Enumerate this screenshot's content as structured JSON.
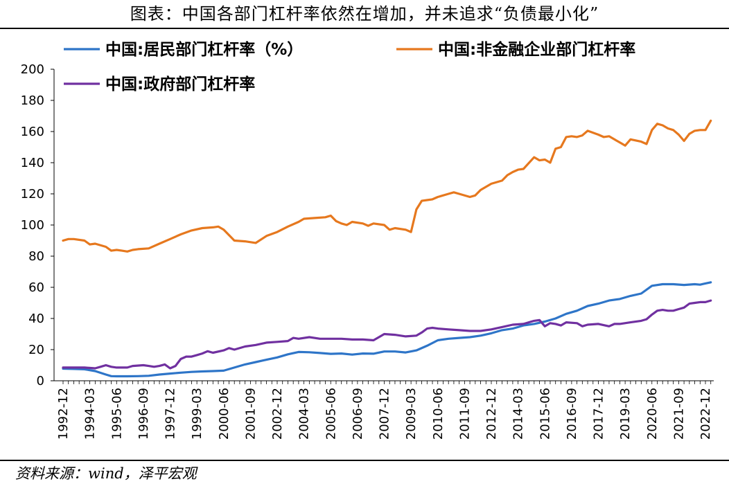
{
  "title": "图表：中国各部门杠杆率依然在增加，并未追求“负债最小化”",
  "source": "资料来源：wind，泽平宏观",
  "chart_data": {
    "type": "line",
    "ylim": [
      0,
      200
    ],
    "yticks": [
      0,
      20,
      40,
      60,
      80,
      100,
      120,
      140,
      160,
      180,
      200
    ],
    "xlabel": "",
    "ylabel": "",
    "grid": false,
    "legend_position": "top",
    "x_tick_labels": [
      "1992-12",
      "1994-03",
      "1995-06",
      "1996-09",
      "1997-12",
      "1999-03",
      "2000-06",
      "2001-09",
      "2002-12",
      "2004-03",
      "2005-06",
      "2006-09",
      "2007-12",
      "2009-03",
      "2010-06",
      "2011-09",
      "2012-12",
      "2014-03",
      "2015-06",
      "2016-09",
      "2017-12",
      "2019-03",
      "2020-06",
      "2021-09",
      "2022-12"
    ],
    "series": [
      {
        "name": "中国:居民部门杠杆率（%）",
        "color": "#2e75c8",
        "points": [
          [
            "1992-12",
            7.8
          ],
          [
            "1993-06",
            7.6
          ],
          [
            "1993-12",
            7.4
          ],
          [
            "1994-06",
            6.2
          ],
          [
            "1994-12",
            4.0
          ],
          [
            "1995-03",
            3.0
          ],
          [
            "1995-06",
            2.9
          ],
          [
            "1995-12",
            2.9
          ],
          [
            "1996-06",
            3.0
          ],
          [
            "1996-12",
            3.2
          ],
          [
            "1997-06",
            4.0
          ],
          [
            "1997-12",
            4.6
          ],
          [
            "1998-06",
            5.2
          ],
          [
            "1998-12",
            5.7
          ],
          [
            "1999-06",
            6.0
          ],
          [
            "1999-12",
            6.2
          ],
          [
            "2000-06",
            6.5
          ],
          [
            "2000-12",
            8.5
          ],
          [
            "2001-06",
            10.5
          ],
          [
            "2001-12",
            12.0
          ],
          [
            "2002-06",
            13.5
          ],
          [
            "2002-12",
            15.0
          ],
          [
            "2003-06",
            17.0
          ],
          [
            "2003-12",
            18.5
          ],
          [
            "2004-06",
            18.3
          ],
          [
            "2004-12",
            17.8
          ],
          [
            "2005-06",
            17.3
          ],
          [
            "2005-12",
            17.5
          ],
          [
            "2006-06",
            16.8
          ],
          [
            "2006-12",
            17.5
          ],
          [
            "2007-06",
            17.4
          ],
          [
            "2007-12",
            18.8
          ],
          [
            "2008-06",
            18.8
          ],
          [
            "2008-12",
            18.2
          ],
          [
            "2009-06",
            19.5
          ],
          [
            "2009-12",
            22.5
          ],
          [
            "2010-06",
            26.0
          ],
          [
            "2010-12",
            27.0
          ],
          [
            "2011-06",
            27.5
          ],
          [
            "2011-12",
            28.0
          ],
          [
            "2012-06",
            29.0
          ],
          [
            "2012-12",
            30.5
          ],
          [
            "2013-06",
            32.5
          ],
          [
            "2013-12",
            33.5
          ],
          [
            "2014-06",
            35.5
          ],
          [
            "2014-12",
            36.5
          ],
          [
            "2015-06",
            38.0
          ],
          [
            "2015-12",
            40.0
          ],
          [
            "2016-06",
            43.0
          ],
          [
            "2016-12",
            45.0
          ],
          [
            "2017-06",
            48.0
          ],
          [
            "2017-12",
            49.5
          ],
          [
            "2018-06",
            51.5
          ],
          [
            "2018-12",
            52.5
          ],
          [
            "2019-06",
            54.5
          ],
          [
            "2019-12",
            56.0
          ],
          [
            "2020-06",
            61.0
          ],
          [
            "2020-12",
            62.0
          ],
          [
            "2021-06",
            62.0
          ],
          [
            "2021-12",
            61.5
          ],
          [
            "2022-06",
            62.0
          ],
          [
            "2022-09",
            61.7
          ],
          [
            "2022-12",
            62.5
          ],
          [
            "2023-03",
            63.2
          ]
        ]
      },
      {
        "name": "中国:非金融企业部门杠杆率",
        "color": "#e6781e",
        "points": [
          [
            "1992-12",
            90.0
          ],
          [
            "1993-03",
            91.0
          ],
          [
            "1993-06",
            91.0
          ],
          [
            "1993-12",
            90.0
          ],
          [
            "1994-03",
            87.5
          ],
          [
            "1994-06",
            88.0
          ],
          [
            "1994-12",
            86.0
          ],
          [
            "1995-03",
            83.5
          ],
          [
            "1995-06",
            84.0
          ],
          [
            "1995-09",
            83.5
          ],
          [
            "1995-12",
            83.0
          ],
          [
            "1996-03",
            84.0
          ],
          [
            "1996-06",
            84.5
          ],
          [
            "1996-12",
            85.0
          ],
          [
            "1997-06",
            88.0
          ],
          [
            "1997-12",
            91.0
          ],
          [
            "1998-06",
            94.0
          ],
          [
            "1998-12",
            96.5
          ],
          [
            "1999-06",
            98.0
          ],
          [
            "1999-12",
            98.5
          ],
          [
            "2000-03",
            99.0
          ],
          [
            "2000-06",
            97.0
          ],
          [
            "2000-12",
            90.0
          ],
          [
            "2001-06",
            89.5
          ],
          [
            "2001-12",
            88.5
          ],
          [
            "2002-06",
            93.0
          ],
          [
            "2002-12",
            95.5
          ],
          [
            "2003-06",
            99.0
          ],
          [
            "2003-12",
            102.0
          ],
          [
            "2004-03",
            104.0
          ],
          [
            "2004-09",
            104.5
          ],
          [
            "2005-03",
            105.0
          ],
          [
            "2005-06",
            106.0
          ],
          [
            "2005-09",
            102.5
          ],
          [
            "2005-12",
            101.0
          ],
          [
            "2006-03",
            100.0
          ],
          [
            "2006-06",
            102.0
          ],
          [
            "2006-12",
            101.0
          ],
          [
            "2007-03",
            99.5
          ],
          [
            "2007-06",
            101.0
          ],
          [
            "2007-12",
            100.0
          ],
          [
            "2008-03",
            97.0
          ],
          [
            "2008-06",
            98.0
          ],
          [
            "2008-12",
            97.0
          ],
          [
            "2009-03",
            95.5
          ],
          [
            "2009-06",
            110.0
          ],
          [
            "2009-09",
            115.5
          ],
          [
            "2009-12",
            116.0
          ],
          [
            "2010-03",
            116.5
          ],
          [
            "2010-06",
            118.0
          ],
          [
            "2010-12",
            120.0
          ],
          [
            "2011-03",
            121.0
          ],
          [
            "2011-06",
            120.0
          ],
          [
            "2011-12",
            118.0
          ],
          [
            "2012-03",
            119.0
          ],
          [
            "2012-06",
            122.5
          ],
          [
            "2012-12",
            126.5
          ],
          [
            "2013-06",
            128.5
          ],
          [
            "2013-09",
            132.0
          ],
          [
            "2013-12",
            134.0
          ],
          [
            "2014-03",
            135.5
          ],
          [
            "2014-06",
            136.0
          ],
          [
            "2014-12",
            143.5
          ],
          [
            "2015-03",
            141.5
          ],
          [
            "2015-06",
            142.0
          ],
          [
            "2015-09",
            140.0
          ],
          [
            "2015-12",
            149.0
          ],
          [
            "2016-03",
            150.0
          ],
          [
            "2016-06",
            156.5
          ],
          [
            "2016-09",
            157.0
          ],
          [
            "2016-12",
            156.5
          ],
          [
            "2017-03",
            157.5
          ],
          [
            "2017-06",
            160.5
          ],
          [
            "2017-12",
            158.0
          ],
          [
            "2018-03",
            156.5
          ],
          [
            "2018-06",
            157.0
          ],
          [
            "2018-12",
            153.0
          ],
          [
            "2019-03",
            151.0
          ],
          [
            "2019-06",
            155.0
          ],
          [
            "2019-12",
            153.5
          ],
          [
            "2020-03",
            152.0
          ],
          [
            "2020-06",
            161.0
          ],
          [
            "2020-09",
            165.0
          ],
          [
            "2020-12",
            164.0
          ],
          [
            "2021-03",
            162.0
          ],
          [
            "2021-06",
            161.0
          ],
          [
            "2021-09",
            158.0
          ],
          [
            "2021-12",
            154.0
          ],
          [
            "2022-03",
            158.5
          ],
          [
            "2022-06",
            160.5
          ],
          [
            "2022-09",
            161.0
          ],
          [
            "2022-12",
            161.0
          ],
          [
            "2023-03",
            167.0
          ]
        ]
      },
      {
        "name": "中国:政府部门杠杆率",
        "color": "#7030a0",
        "points": [
          [
            "1992-12",
            8.5
          ],
          [
            "1993-06",
            8.5
          ],
          [
            "1993-12",
            8.5
          ],
          [
            "1994-06",
            8.0
          ],
          [
            "1994-09",
            9.0
          ],
          [
            "1994-12",
            10.0
          ],
          [
            "1995-03",
            9.0
          ],
          [
            "1995-06",
            8.5
          ],
          [
            "1995-12",
            8.5
          ],
          [
            "1996-03",
            9.5
          ],
          [
            "1996-09",
            10.0
          ],
          [
            "1996-12",
            9.5
          ],
          [
            "1997-03",
            9.0
          ],
          [
            "1997-06",
            9.5
          ],
          [
            "1997-09",
            10.5
          ],
          [
            "1997-12",
            8.0
          ],
          [
            "1998-03",
            9.5
          ],
          [
            "1998-06",
            14.0
          ],
          [
            "1998-09",
            15.5
          ],
          [
            "1998-12",
            15.5
          ],
          [
            "1999-03",
            16.5
          ],
          [
            "1999-06",
            17.5
          ],
          [
            "1999-09",
            19.0
          ],
          [
            "1999-12",
            18.0
          ],
          [
            "2000-06",
            19.5
          ],
          [
            "2000-09",
            21.0
          ],
          [
            "2000-12",
            20.0
          ],
          [
            "2001-06",
            22.0
          ],
          [
            "2001-12",
            23.0
          ],
          [
            "2002-06",
            24.5
          ],
          [
            "2002-12",
            25.0
          ],
          [
            "2003-06",
            25.5
          ],
          [
            "2003-09",
            27.5
          ],
          [
            "2003-12",
            27.0
          ],
          [
            "2004-06",
            28.0
          ],
          [
            "2004-12",
            27.0
          ],
          [
            "2005-06",
            27.0
          ],
          [
            "2005-12",
            27.0
          ],
          [
            "2006-06",
            26.5
          ],
          [
            "2006-12",
            26.5
          ],
          [
            "2007-06",
            26.0
          ],
          [
            "2007-09",
            28.0
          ],
          [
            "2007-12",
            30.0
          ],
          [
            "2008-06",
            29.5
          ],
          [
            "2008-12",
            28.5
          ],
          [
            "2009-06",
            29.0
          ],
          [
            "2009-09",
            31.0
          ],
          [
            "2009-12",
            33.5
          ],
          [
            "2010-03",
            34.0
          ],
          [
            "2010-06",
            33.5
          ],
          [
            "2010-12",
            33.0
          ],
          [
            "2011-06",
            32.5
          ],
          [
            "2011-12",
            32.0
          ],
          [
            "2012-06",
            32.0
          ],
          [
            "2012-12",
            33.0
          ],
          [
            "2013-06",
            34.5
          ],
          [
            "2013-12",
            36.0
          ],
          [
            "2014-06",
            36.5
          ],
          [
            "2014-12",
            38.5
          ],
          [
            "2015-03",
            39.0
          ],
          [
            "2015-06",
            35.0
          ],
          [
            "2015-09",
            37.0
          ],
          [
            "2015-12",
            36.5
          ],
          [
            "2016-03",
            35.5
          ],
          [
            "2016-06",
            37.5
          ],
          [
            "2016-12",
            37.0
          ],
          [
            "2017-03",
            35.0
          ],
          [
            "2017-06",
            36.0
          ],
          [
            "2017-12",
            36.5
          ],
          [
            "2018-06",
            35.0
          ],
          [
            "2018-09",
            36.5
          ],
          [
            "2018-12",
            36.5
          ],
          [
            "2019-06",
            37.5
          ],
          [
            "2019-12",
            38.5
          ],
          [
            "2020-03",
            39.5
          ],
          [
            "2020-06",
            42.5
          ],
          [
            "2020-09",
            45.0
          ],
          [
            "2020-12",
            45.5
          ],
          [
            "2021-03",
            45.0
          ],
          [
            "2021-06",
            45.0
          ],
          [
            "2021-09",
            46.0
          ],
          [
            "2021-12",
            47.0
          ],
          [
            "2022-03",
            49.5
          ],
          [
            "2022-06",
            50.0
          ],
          [
            "2022-09",
            50.5
          ],
          [
            "2022-12",
            50.5
          ],
          [
            "2023-03",
            51.5
          ]
        ]
      }
    ]
  }
}
